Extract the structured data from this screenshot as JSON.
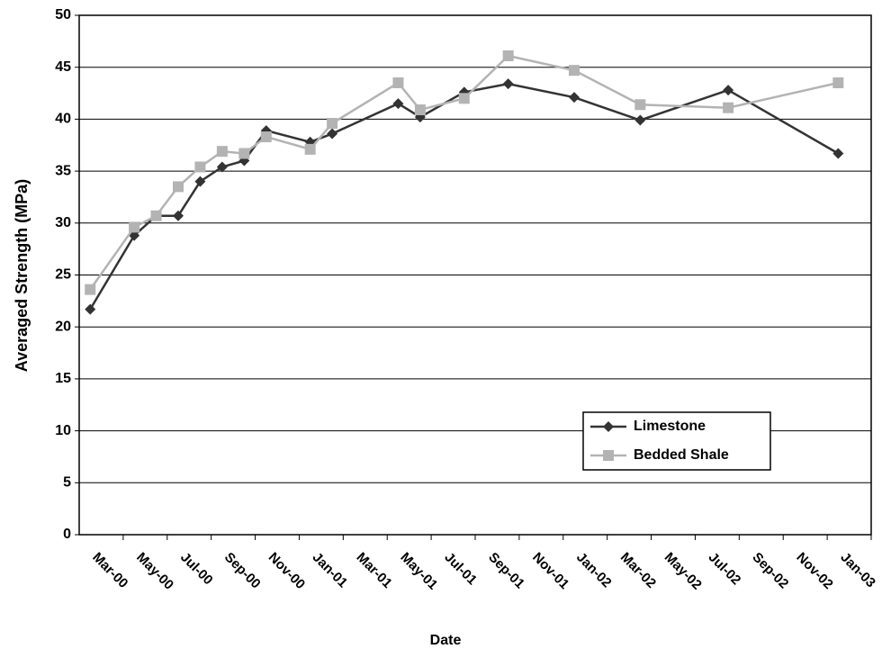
{
  "chart_data": {
    "type": "line",
    "x_label": "Date",
    "y_label": "Averaged Strength (MPa)",
    "x": [
      "2000-01",
      "2000-03",
      "2000-04",
      "2000-05",
      "2000-06",
      "2000-07",
      "2000-08",
      "2000-09",
      "2000-11",
      "2000-12",
      "2001-03",
      "2001-04",
      "2001-06",
      "2001-08",
      "2001-11",
      "2002-02",
      "2002-06",
      "2002-11"
    ],
    "series": [
      {
        "name": "Limestone",
        "color": "#333333",
        "marker": "diamond",
        "values": [
          21.7,
          28.8,
          30.7,
          30.7,
          34.0,
          35.4,
          36.0,
          38.9,
          37.8,
          38.6,
          41.5,
          40.2,
          42.6,
          43.4,
          42.1,
          39.9,
          42.8,
          36.7
        ]
      },
      {
        "name": "Bedded Shale",
        "color": "#b3b3b3",
        "marker": "square",
        "values": [
          23.6,
          29.6,
          30.7,
          33.5,
          35.4,
          36.9,
          36.7,
          38.3,
          37.1,
          39.6,
          43.5,
          40.9,
          42.0,
          46.1,
          44.7,
          41.4,
          41.1,
          43.5
        ]
      }
    ],
    "xlim": [
      "2000-01",
      "2003-01"
    ],
    "xticks": [
      {
        "value": "2000-03",
        "label": "Mar-00"
      },
      {
        "value": "2000-05",
        "label": "May-00"
      },
      {
        "value": "2000-07",
        "label": "Jul-00"
      },
      {
        "value": "2000-09",
        "label": "Sep-00"
      },
      {
        "value": "2000-11",
        "label": "Nov-00"
      },
      {
        "value": "2001-01",
        "label": "Jan-01"
      },
      {
        "value": "2001-03",
        "label": "Mar-01"
      },
      {
        "value": "2001-05",
        "label": "May-01"
      },
      {
        "value": "2001-07",
        "label": "Jul-01"
      },
      {
        "value": "2001-09",
        "label": "Sep-01"
      },
      {
        "value": "2001-11",
        "label": "Nov-01"
      },
      {
        "value": "2002-01",
        "label": "Jan-02"
      },
      {
        "value": "2002-03",
        "label": "Mar-02"
      },
      {
        "value": "2002-05",
        "label": "May-02"
      },
      {
        "value": "2002-07",
        "label": "Jul-02"
      },
      {
        "value": "2002-09",
        "label": "Sep-02"
      },
      {
        "value": "2002-11",
        "label": "Nov-02"
      },
      {
        "value": "2003-01",
        "label": "Jan-03"
      }
    ],
    "ylim": [
      0,
      50
    ],
    "yticks": [
      0,
      5,
      10,
      15,
      20,
      25,
      30,
      35,
      40,
      45,
      50
    ],
    "grid": true,
    "legend": "lower-right"
  }
}
